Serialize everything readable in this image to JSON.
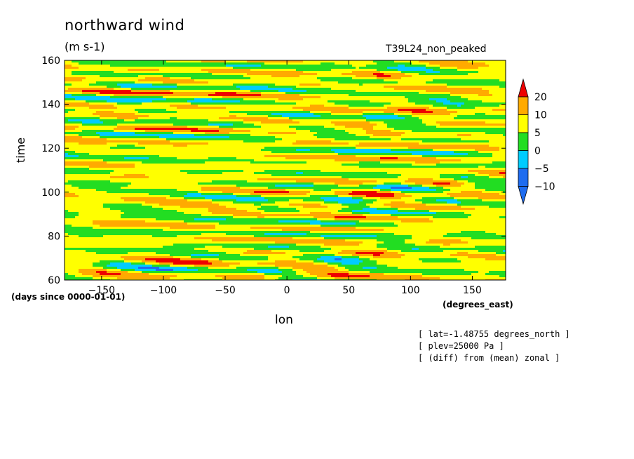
{
  "figure": {
    "title": "northward wind",
    "units": "(m s-1)",
    "run_name": "T39L24_non_peaked",
    "y_axis_title": "time",
    "y_axis_units": "(days since 0000-01-01)",
    "x_axis_title": "lon",
    "x_axis_units": "(degrees_east)",
    "notes": [
      "[ lat=-1.48755 degrees_north ]",
      "[ plev=25000 Pa ]",
      "[ (diff) from (mean) zonal ]"
    ]
  },
  "chart_data": {
    "type": "heatmap",
    "title": "northward wind",
    "subtitle": "(m s-1)",
    "xlabel": "lon",
    "ylabel": "time",
    "xlim": [
      -180,
      177
    ],
    "ylim": [
      60,
      160
    ],
    "x_ticks": [
      -150,
      -100,
      -50,
      0,
      50,
      100,
      150
    ],
    "y_ticks": [
      60,
      80,
      100,
      120,
      140,
      160
    ],
    "colorbar": {
      "levels": [
        -10,
        -5,
        0,
        5,
        10,
        20
      ],
      "level_labels": [
        "20",
        "10",
        "5",
        "0",
        "-5",
        "-10"
      ],
      "colors": [
        "#1e6cf0",
        "#00ccff",
        "#22dd22",
        "#ffff00",
        "#ffaa00",
        "#ee0000"
      ]
    },
    "field_description": "Time-longitude pattern of northward wind anomaly with streaks tilted eastward (propagating features); values range roughly from below -10 to above 20 m/s."
  },
  "colors": {
    "plot_background": "#22dd22",
    "axis": "#000000"
  }
}
